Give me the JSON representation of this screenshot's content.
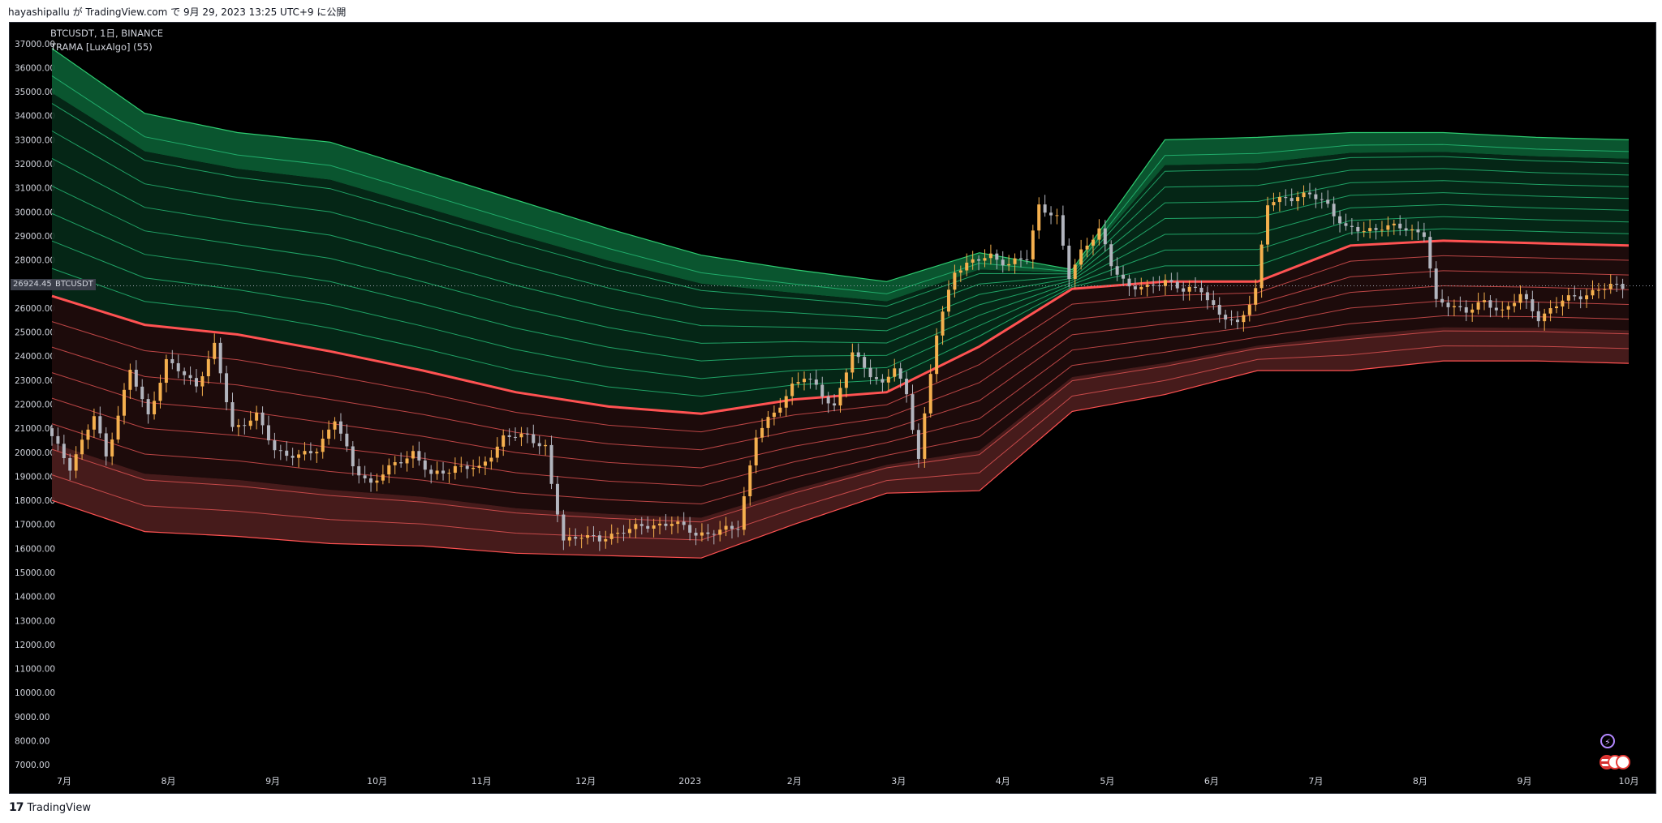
{
  "attribution": "hayashipallu が TradingView.com で 9月 29, 2023 13:25 UTC+9 に公開",
  "legend": {
    "symbol_line": "BTCUSDT, 1日, BINANCE",
    "indicator_line": "TRAMA [LuxAlgo] (55)"
  },
  "price_tag": {
    "value": "26924.45",
    "symbol": "BTCUSDT"
  },
  "footer": {
    "brand": "TradingView",
    "logo": "17"
  },
  "icons": [
    "flash-icon",
    "us-flag-icon"
  ],
  "colors": {
    "background": "#000000",
    "candle_up": "#f5b04e",
    "candle_down": "#b2b5be",
    "upper_band": "#0b5a32",
    "lower_band": "#4a1c1c",
    "trama_line": "#ff5252",
    "trama_line_green": "#3be39a"
  },
  "chart_data": {
    "type": "line",
    "title": "BTCUSDT, 1日, BINANCE",
    "subtitle": "TRAMA [LuxAlgo] (55)",
    "y_ticks": [
      "37000.00",
      "36000.00",
      "35000.00",
      "34000.00",
      "33000.00",
      "32000.00",
      "31000.00",
      "30000.00",
      "29000.00",
      "28000.00",
      "27000.00",
      "26000.00",
      "25000.00",
      "24000.00",
      "23000.00",
      "22000.00",
      "21000.00",
      "20000.00",
      "19000.00",
      "18000.00",
      "17000.00",
      "16000.00",
      "15000.00",
      "14000.00",
      "13000.00",
      "12000.00",
      "11000.00",
      "10000.00",
      "9000.00",
      "8000.00",
      "7000.00"
    ],
    "x_ticks": [
      "7月",
      "8月",
      "9月",
      "10月",
      "11月",
      "12月",
      "2023",
      "2月",
      "3月",
      "4月",
      "5月",
      "6月",
      "7月",
      "8月",
      "9月",
      "10月"
    ],
    "ylim": [
      6500,
      37600
    ],
    "last_price": 26924.45,
    "price_path": [
      [
        0,
        21000
      ],
      [
        4,
        19400
      ],
      [
        8,
        21500
      ],
      [
        10,
        19800
      ],
      [
        14,
        23400
      ],
      [
        17,
        21500
      ],
      [
        20,
        23800
      ],
      [
        25,
        22800
      ],
      [
        28,
        24400
      ],
      [
        31,
        21000
      ],
      [
        35,
        21500
      ],
      [
        38,
        20100
      ],
      [
        42,
        19800
      ],
      [
        45,
        20100
      ],
      [
        48,
        21400
      ],
      [
        51,
        19400
      ],
      [
        54,
        18700
      ],
      [
        58,
        19500
      ],
      [
        61,
        20000
      ],
      [
        64,
        19000
      ],
      [
        68,
        19400
      ],
      [
        72,
        19300
      ],
      [
        76,
        20600
      ],
      [
        80,
        20700
      ],
      [
        83,
        20200
      ],
      [
        84,
        18600
      ],
      [
        86,
        16300
      ],
      [
        89,
        16600
      ],
      [
        92,
        16300
      ],
      [
        96,
        16800
      ],
      [
        100,
        16900
      ],
      [
        104,
        17100
      ],
      [
        108,
        16600
      ],
      [
        112,
        16700
      ],
      [
        115,
        16900
      ],
      [
        118,
        20700
      ],
      [
        121,
        21600
      ],
      [
        124,
        22800
      ],
      [
        126,
        23100
      ],
      [
        128,
        22700
      ],
      [
        131,
        21900
      ],
      [
        134,
        24100
      ],
      [
        137,
        23300
      ],
      [
        139,
        22800
      ],
      [
        141,
        23500
      ],
      [
        143,
        22400
      ],
      [
        145,
        19800
      ],
      [
        148,
        24900
      ],
      [
        151,
        27600
      ],
      [
        154,
        27900
      ],
      [
        157,
        28200
      ],
      [
        160,
        27800
      ],
      [
        163,
        28100
      ],
      [
        165,
        30300
      ],
      [
        168,
        29700
      ],
      [
        170,
        27300
      ],
      [
        172,
        28400
      ],
      [
        175,
        29200
      ],
      [
        177,
        27800
      ],
      [
        180,
        26900
      ],
      [
        183,
        26800
      ],
      [
        186,
        27200
      ],
      [
        189,
        26700
      ],
      [
        192,
        26800
      ],
      [
        195,
        25700
      ],
      [
        198,
        25300
      ],
      [
        201,
        26800
      ],
      [
        203,
        30300
      ],
      [
        206,
        30600
      ],
      [
        210,
        30700
      ],
      [
        213,
        30300
      ],
      [
        216,
        29300
      ],
      [
        219,
        29200
      ],
      [
        222,
        29400
      ],
      [
        226,
        29300
      ],
      [
        229,
        29100
      ],
      [
        231,
        26200
      ],
      [
        234,
        26100
      ],
      [
        236,
        25900
      ],
      [
        239,
        26200
      ],
      [
        242,
        25900
      ],
      [
        245,
        26500
      ],
      [
        248,
        25600
      ],
      [
        252,
        26300
      ],
      [
        256,
        26600
      ],
      [
        260,
        26900
      ],
      [
        262,
        26924
      ]
    ],
    "band_series": [
      {
        "values": [
          36800,
          34100,
          33300,
          32900,
          31700,
          30500,
          29300,
          28200,
          27600,
          27100,
          28300,
          27600,
          33000,
          33100,
          33300,
          33300,
          33100,
          33000
        ]
      },
      {
        "values": [
          26500,
          25300,
          24900,
          24200,
          23400,
          22500,
          21900,
          21600,
          22200,
          22500,
          24400,
          26800,
          27100,
          27100,
          28600,
          28800,
          28700,
          28600
        ]
      },
      {
        "values": [
          18000,
          16700,
          16500,
          16200,
          16100,
          15800,
          15700,
          15600,
          17000,
          18300,
          18400,
          21700,
          22400,
          23400,
          23400,
          23800,
          23800,
          23700
        ]
      }
    ]
  }
}
